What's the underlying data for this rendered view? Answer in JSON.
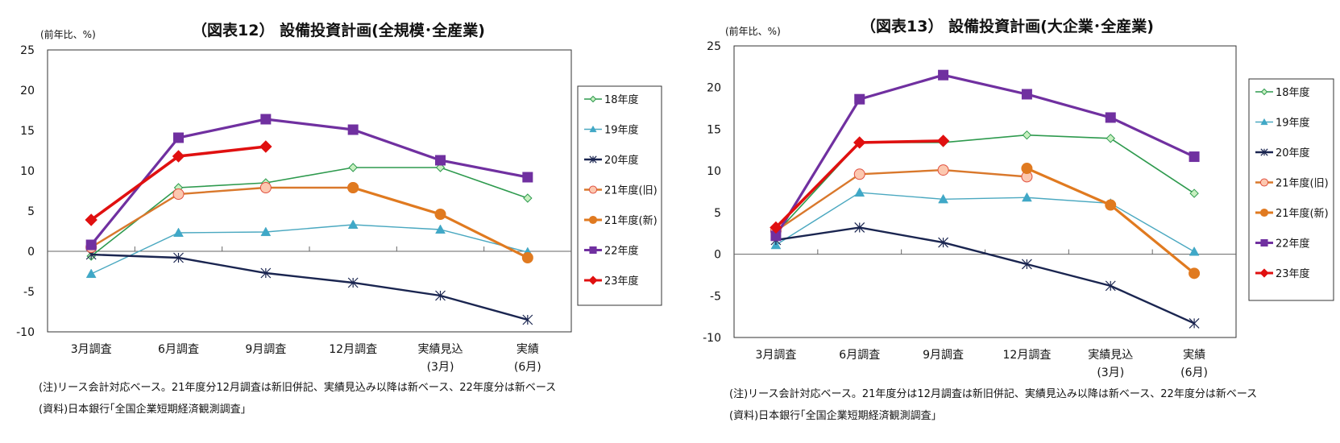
{
  "chart_data": [
    {
      "type": "line",
      "title": "（図表12） 設備投資計画(全規模･全産業)",
      "ylabel": "(前年比、%)",
      "xlabel": "",
      "ylim": [
        -10,
        25
      ],
      "yticks": [
        25,
        20,
        15,
        10,
        5,
        0,
        -5,
        -10
      ],
      "categories": [
        "3月調査",
        "6月調査",
        "9月調査",
        "12月調査",
        "実績見込\n(3月)",
        "実績\n(6月)"
      ],
      "grid": false,
      "legend": "right",
      "series": [
        {
          "name": "18年度",
          "values": [
            -0.6,
            7.9,
            8.5,
            10.4,
            10.4,
            6.6
          ]
        },
        {
          "name": "19年度",
          "values": [
            -2.8,
            2.3,
            2.4,
            3.3,
            2.7,
            -0.1
          ]
        },
        {
          "name": "20年度",
          "values": [
            -0.4,
            -0.8,
            -2.7,
            -3.9,
            -5.5,
            -8.5
          ]
        },
        {
          "name": "21年度(旧)",
          "values": [
            0.5,
            7.1,
            7.9,
            7.9,
            null,
            null
          ]
        },
        {
          "name": "21年度(新)",
          "values": [
            null,
            null,
            null,
            7.9,
            4.6,
            -0.8
          ]
        },
        {
          "name": "22年度",
          "values": [
            0.8,
            14.1,
            16.4,
            15.1,
            11.3,
            9.2
          ]
        },
        {
          "name": "23年度",
          "values": [
            3.9,
            11.8,
            13.0,
            null,
            null,
            null
          ]
        }
      ],
      "note": "(注)リース会計対応ベース。21年度分12月調査は新旧併記、実績見込み以降は新ベース、22年度分は新ベース",
      "source": "(資料)日本銀行｢全国企業短期経済観測調査｣"
    },
    {
      "type": "line",
      "title": "（図表13） 設備投資計画(大企業･全産業)",
      "ylabel": "(前年比、%)",
      "xlabel": "",
      "ylim": [
        -10,
        25
      ],
      "yticks": [
        25,
        20,
        15,
        10,
        5,
        0,
        -5,
        -10
      ],
      "categories": [
        "3月調査",
        "6月調査",
        "9月調査",
        "12月調査",
        "実績見込\n(3月)",
        "実績\n(6月)"
      ],
      "grid": false,
      "legend": "right",
      "series": [
        {
          "name": "18年度",
          "values": [
            2.5,
            13.4,
            13.4,
            14.3,
            13.9,
            7.3
          ]
        },
        {
          "name": "19年度",
          "values": [
            1.1,
            7.4,
            6.6,
            6.8,
            6.1,
            0.3
          ]
        },
        {
          "name": "20年度",
          "values": [
            1.7,
            3.2,
            1.4,
            -1.2,
            -3.8,
            -8.3
          ]
        },
        {
          "name": "21年度(旧)",
          "values": [
            2.8,
            9.6,
            10.1,
            9.3,
            null,
            null
          ]
        },
        {
          "name": "21年度(新)",
          "values": [
            null,
            null,
            null,
            10.3,
            5.9,
            -2.3
          ]
        },
        {
          "name": "22年度",
          "values": [
            2.2,
            18.6,
            21.5,
            19.2,
            16.4,
            11.7
          ]
        },
        {
          "name": "23年度",
          "values": [
            3.2,
            13.4,
            13.6,
            null,
            null,
            null
          ]
        }
      ],
      "note": "(注)リース会計対応ベース。21年度分は12月調査は新旧併記、実績見込み以降は新ベース、22年度分は新ベース",
      "source": "(資料)日本銀行｢全国企業短期経済観測調査｣"
    }
  ],
  "series_styles": [
    {
      "color": "#2e9a4e",
      "marker": "diamond-open",
      "fill": "#c8f0c0"
    },
    {
      "color": "#4aa8c0",
      "marker": "triangle",
      "fill": "#3fa8c8"
    },
    {
      "color": "#1a2550",
      "marker": "asterisk",
      "fill": "none"
    },
    {
      "color": "#d9782c",
      "marker": "circle-open",
      "fill": "#fcc8b0"
    },
    {
      "color": "#e07a20",
      "marker": "circle",
      "fill": "#e07a20"
    },
    {
      "color": "#7030a0",
      "marker": "square",
      "fill": "#7030a0"
    },
    {
      "color": "#e01010",
      "marker": "diamond",
      "fill": "#e01010"
    }
  ]
}
